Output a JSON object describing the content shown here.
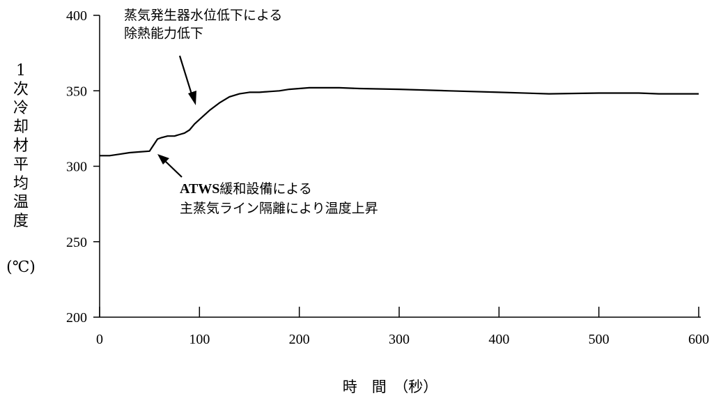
{
  "chart_data": {
    "type": "line",
    "xlabel": "時　間　（秒）",
    "ylabel": "1次冷却材平均温度",
    "ylabel_unit": "(℃)",
    "xlim": [
      0,
      600
    ],
    "ylim": [
      200,
      400
    ],
    "x_ticks": [
      "0",
      "100",
      "200",
      "300",
      "400",
      "500",
      "600"
    ],
    "y_ticks": [
      "200",
      "250",
      "300",
      "350",
      "400"
    ],
    "grid": false,
    "series": [
      {
        "x": [
          0,
          10,
          20,
          30,
          40,
          50,
          52,
          55,
          58,
          62,
          68,
          75,
          80,
          85,
          90,
          95,
          100,
          110,
          120,
          130,
          140,
          150,
          160,
          170,
          180,
          190,
          200,
          210,
          220,
          240,
          260,
          300,
          350,
          400,
          450,
          500,
          540,
          560,
          600
        ],
        "y": [
          307,
          307,
          308,
          309,
          309.5,
          310,
          312,
          315,
          318,
          319,
          320,
          320,
          321,
          322,
          324,
          328,
          331,
          337,
          342,
          346,
          348,
          349,
          349,
          349.5,
          350,
          351,
          351.5,
          352,
          352,
          352,
          351.5,
          351,
          350,
          349,
          348,
          348.5,
          348.5,
          348,
          348
        ]
      }
    ],
    "annotations": [
      {
        "lines": [
          "蒸気発生器水位低下による",
          "除熱能力低下"
        ],
        "points_to": {
          "x": 97,
          "y": 340
        }
      },
      {
        "lines": [
          "ATWS緩和設備による",
          "主蒸気ライン隔離により温度上昇"
        ],
        "bold_prefix": "ATWS",
        "points_to": {
          "x": 60,
          "y": 316
        }
      }
    ]
  }
}
